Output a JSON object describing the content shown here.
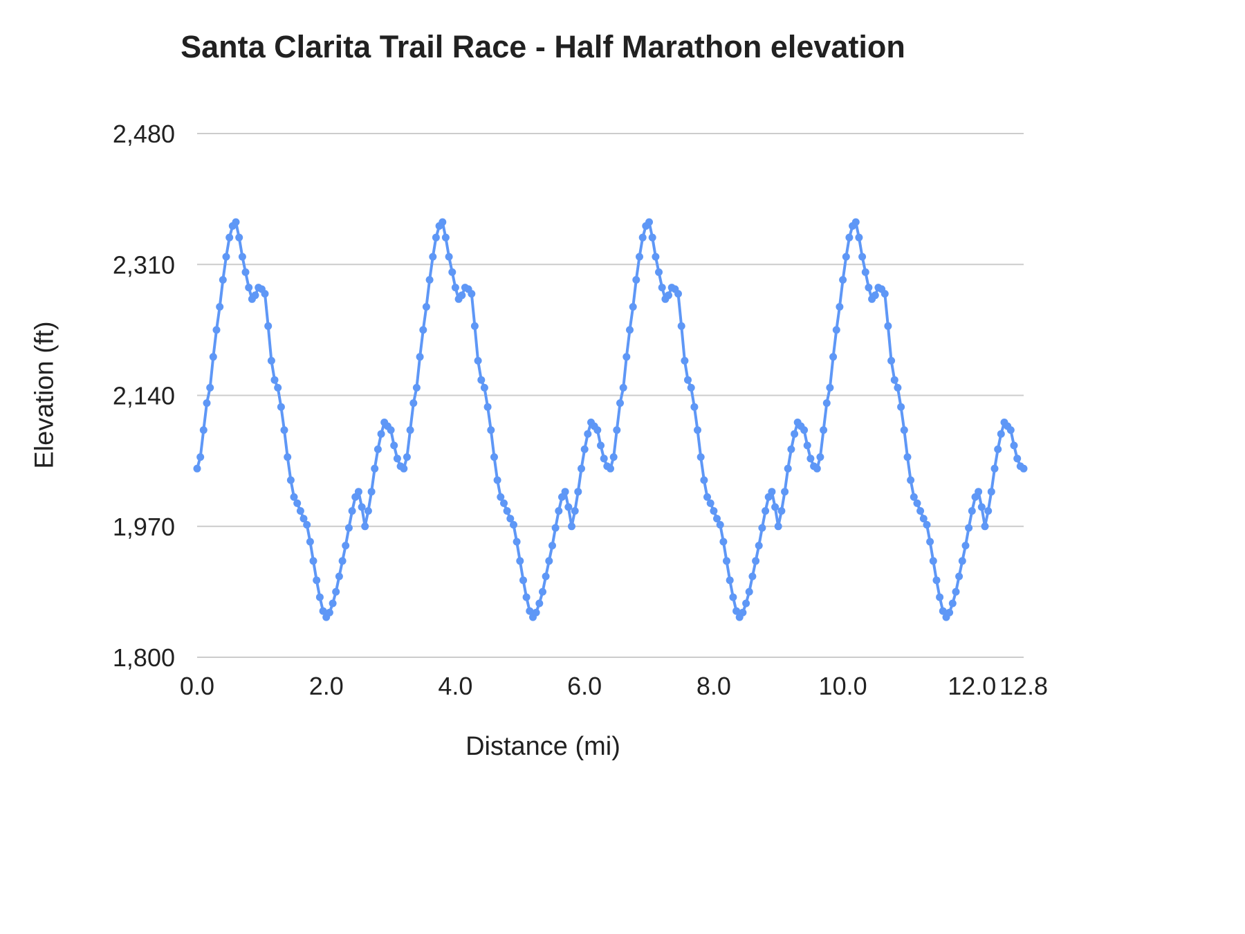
{
  "chart_data": {
    "type": "line",
    "title": "Santa Clarita Trail Race - Half Marathon elevation",
    "xlabel": "Distance (mi)",
    "ylabel": "Elevation (ft)",
    "xlim": [
      0,
      12.8
    ],
    "ylim": [
      1800,
      2480
    ],
    "grid": "horizontal",
    "legend": "none",
    "series_color": "#5e97f6",
    "grid_color": "#cccccc",
    "tick_color": "#212121",
    "point_radius": 5.5,
    "line_width": 4,
    "yticks": [
      {
        "value": 1800,
        "label": "1,800"
      },
      {
        "value": 1970,
        "label": "1,970"
      },
      {
        "value": 2140,
        "label": "2,140"
      },
      {
        "value": 2310,
        "label": "2,310"
      },
      {
        "value": 2480,
        "label": "2,480"
      }
    ],
    "xticks": [
      {
        "value": 0,
        "label": "0.0"
      },
      {
        "value": 2,
        "label": "2.0"
      },
      {
        "value": 4,
        "label": "4.0"
      },
      {
        "value": 6,
        "label": "6.0"
      },
      {
        "value": 8,
        "label": "8.0"
      },
      {
        "value": 10,
        "label": "10.0"
      },
      {
        "value": 12,
        "label": "12.0"
      },
      {
        "value": 12.8,
        "label": "12.8"
      }
    ],
    "x_start_mi": 0.0,
    "x_step_mi": 0.05,
    "laps": 4,
    "series": [
      {
        "name": "Elevation",
        "values_ft": [
          2045,
          2060,
          2095,
          2130,
          2150,
          2190,
          2225,
          2255,
          2290,
          2320,
          2345,
          2360,
          2365,
          2345,
          2320,
          2300,
          2280,
          2265,
          2270,
          2280,
          2278,
          2272,
          2230,
          2185,
          2160,
          2150,
          2125,
          2095,
          2060,
          2030,
          2008,
          2000,
          1990,
          1980,
          1972,
          1950,
          1925,
          1900,
          1878,
          1860,
          1852,
          1858,
          1870,
          1885,
          1905,
          1925,
          1945,
          1968,
          1990,
          2008,
          2015,
          1995,
          1970,
          1990,
          2015,
          2045,
          2070,
          2090,
          2105,
          2100,
          2095,
          2075,
          2058,
          2048,
          2045,
          2060,
          2095,
          2130,
          2150,
          2190,
          2225,
          2255,
          2290,
          2320,
          2345,
          2360,
          2365,
          2345,
          2320,
          2300,
          2280,
          2265,
          2270,
          2280,
          2278,
          2272,
          2230,
          2185,
          2160,
          2150,
          2125,
          2095,
          2060,
          2030,
          2008,
          2000,
          1990,
          1980,
          1972,
          1950,
          1925,
          1900,
          1878,
          1860,
          1852,
          1858,
          1870,
          1885,
          1905,
          1925,
          1945,
          1968,
          1990,
          2008,
          2015,
          1995,
          1970,
          1990,
          2015,
          2045,
          2070,
          2090,
          2105,
          2100,
          2095,
          2075,
          2058,
          2048,
          2045,
          2060,
          2095,
          2130,
          2150,
          2190,
          2225,
          2255,
          2290,
          2320,
          2345,
          2360,
          2365,
          2345,
          2320,
          2300,
          2280,
          2265,
          2270,
          2280,
          2278,
          2272,
          2230,
          2185,
          2160,
          2150,
          2125,
          2095,
          2060,
          2030,
          2008,
          2000,
          1990,
          1980,
          1972,
          1950,
          1925,
          1900,
          1878,
          1860,
          1852,
          1858,
          1870,
          1885,
          1905,
          1925,
          1945,
          1968,
          1990,
          2008,
          2015,
          1995,
          1970,
          1990,
          2015,
          2045,
          2070,
          2090,
          2105,
          2100,
          2095,
          2075,
          2058,
          2048,
          2045,
          2060,
          2095,
          2130,
          2150,
          2190,
          2225,
          2255,
          2290,
          2320,
          2345,
          2360,
          2365,
          2345,
          2320,
          2300,
          2280,
          2265,
          2270,
          2280,
          2278,
          2272,
          2230,
          2185,
          2160,
          2150,
          2125,
          2095,
          2060,
          2030,
          2008,
          2000,
          1990,
          1980,
          1972,
          1950,
          1925,
          1900,
          1878,
          1860,
          1852,
          1858,
          1870,
          1885,
          1905,
          1925,
          1945,
          1968,
          1990,
          2008,
          2015,
          1995,
          1970,
          1990,
          2015,
          2045,
          2070,
          2090,
          2105,
          2100,
          2095,
          2075,
          2058,
          2048,
          2045
        ]
      }
    ]
  }
}
